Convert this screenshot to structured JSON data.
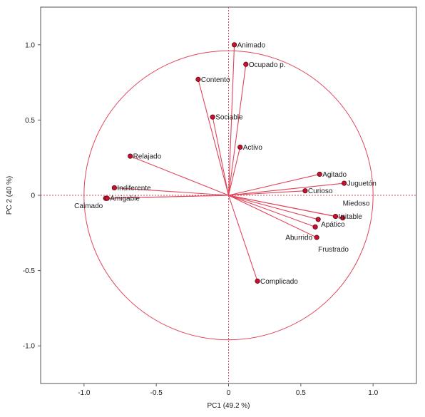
{
  "chart_data": {
    "type": "scatter",
    "title": "",
    "xlabel": "PC1 (49.2 %)",
    "ylabel": "PC 2  (40 %)",
    "xlim": [
      -1.3,
      1.3
    ],
    "ylim": [
      -1.25,
      1.25
    ],
    "x_ticks": [
      -1.0,
      -0.5,
      0.0,
      0.5,
      1.0
    ],
    "x_tick_labels": [
      "-1.0",
      "-0.5",
      "0",
      "0.5",
      "1.0"
    ],
    "y_ticks": [
      -1.0,
      -0.5,
      0.0,
      0.5,
      1.0
    ],
    "y_tick_labels": [
      "-1.0",
      "-0.5",
      "0",
      "0.5",
      "1.0"
    ],
    "correlation_circle_radius": 1.0,
    "grid": false,
    "colors": {
      "line": "#e0455a",
      "point_fill": "#c8102e",
      "point_stroke": "#5a0a12",
      "frame": "#555555"
    },
    "points": [
      {
        "name": "Animado",
        "x": 0.04,
        "y": 1.0,
        "label_side": "right"
      },
      {
        "name": "Ocupado p.",
        "x": 0.12,
        "y": 0.87,
        "label_side": "right"
      },
      {
        "name": "Contento",
        "x": -0.21,
        "y": 0.77,
        "label_side": "right"
      },
      {
        "name": "Sociable",
        "x": -0.11,
        "y": 0.52,
        "label_side": "right"
      },
      {
        "name": "Activo",
        "x": 0.08,
        "y": 0.32,
        "label_side": "right"
      },
      {
        "name": "Relajado",
        "x": -0.68,
        "y": 0.26,
        "label_side": "right"
      },
      {
        "name": "Indiferente",
        "x": -0.79,
        "y": 0.05,
        "label_side": "right"
      },
      {
        "name": "Calmado",
        "x": -0.85,
        "y": -0.02,
        "label_side": "left"
      },
      {
        "name": "Amigable",
        "x": -0.84,
        "y": -0.02,
        "label_side": "right"
      },
      {
        "name": "Agitado",
        "x": 0.63,
        "y": 0.14,
        "label_side": "right"
      },
      {
        "name": "Juguetón",
        "x": 0.8,
        "y": 0.08,
        "label_side": "right"
      },
      {
        "name": "Curioso",
        "x": 0.53,
        "y": 0.03,
        "label_side": "right"
      },
      {
        "name": "Miedoso",
        "x": 0.79,
        "y": -0.15,
        "label_side": "above-right"
      },
      {
        "name": "Irritable",
        "x": 0.74,
        "y": -0.14,
        "label_side": "right"
      },
      {
        "name": "Apático",
        "x": 0.62,
        "y": -0.16,
        "label_side": "below-right"
      },
      {
        "name": "Aburrido",
        "x": 0.6,
        "y": -0.21,
        "label_side": "below-left"
      },
      {
        "name": "Frustrado",
        "x": 0.61,
        "y": -0.28,
        "label_side": "below-right"
      },
      {
        "name": "Complicado",
        "x": 0.2,
        "y": -0.57,
        "label_side": "right"
      }
    ]
  }
}
